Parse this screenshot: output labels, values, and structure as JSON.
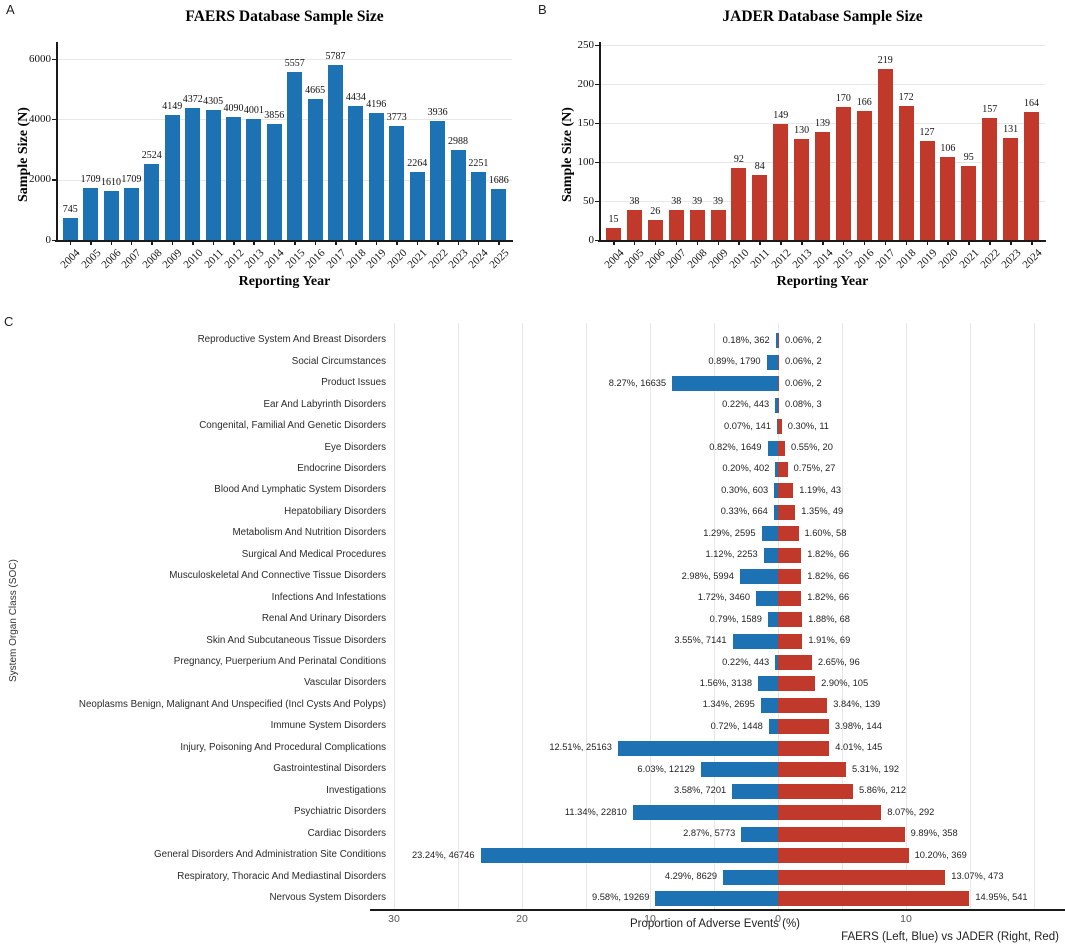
{
  "letters": {
    "a": "A",
    "b": "B",
    "c": "C"
  },
  "colors": {
    "faers_blue": "#1d72b4",
    "jader_red": "#c0392b",
    "grid": "#e7e7e7",
    "axis": "#1a1a1a"
  },
  "chart_data": [
    {
      "id": "faers-sample-size",
      "type": "bar",
      "title": "FAERS Database Sample Size",
      "xlabel": "Reporting Year",
      "ylabel": "Sample Size (N)",
      "categories": [
        2004,
        2005,
        2006,
        2007,
        2008,
        2009,
        2010,
        2011,
        2012,
        2013,
        2014,
        2015,
        2016,
        2017,
        2018,
        2019,
        2020,
        2021,
        2022,
        2023,
        2024,
        2025
      ],
      "values": [
        745,
        1709,
        1610,
        1709,
        2524,
        4149,
        4372,
        4305,
        4090,
        4001,
        3856,
        5557,
        4665,
        5787,
        4434,
        4196,
        3773,
        2264,
        3936,
        2988,
        2251,
        1686
      ],
      "ylim": [
        0,
        6450
      ],
      "yticks": [
        0,
        2000,
        4000,
        6000
      ],
      "bar_color": "#1d72b4",
      "grid": "horizontal"
    },
    {
      "id": "jader-sample-size",
      "type": "bar",
      "title": "JADER Database Sample Size",
      "xlabel": "Reporting Year",
      "ylabel": "Sample Size (N)",
      "categories": [
        2004,
        2005,
        2006,
        2007,
        2008,
        2009,
        2010,
        2011,
        2012,
        2013,
        2014,
        2015,
        2016,
        2017,
        2018,
        2019,
        2020,
        2021,
        2022,
        2023,
        2024
      ],
      "values": [
        15,
        38,
        26,
        38,
        39,
        39,
        92,
        84,
        149,
        130,
        139,
        170,
        166,
        219,
        172,
        127,
        106,
        95,
        157,
        131,
        164
      ],
      "ylim": [
        0,
        250
      ],
      "yticks": [
        0,
        50,
        100,
        150,
        200,
        250
      ],
      "bar_color": "#c0392b",
      "grid": "horizontal"
    },
    {
      "id": "soc-proportion-comparison",
      "type": "bar-diverging",
      "xlabel": "Proportion of Adverse Events (%)",
      "ylabel": "System Organ Class (SOC)",
      "caption": "FAERS (Left, Blue) vs JADER (Right, Red)",
      "xticks": [
        -30,
        -20,
        -10,
        0,
        10
      ],
      "xtick_labels": [
        "30",
        "20",
        "10",
        "0",
        "10"
      ],
      "xlim": [
        -30,
        22
      ],
      "grid": "vertical",
      "series": [
        {
          "name": "FAERS",
          "side": "left",
          "color": "#1d72b4"
        },
        {
          "name": "JADER",
          "side": "right",
          "color": "#c0392b"
        }
      ],
      "rows": [
        {
          "label": "Reproductive System And Breast Disorders",
          "faers_pct": 0.18,
          "faers_n": 362,
          "jader_pct": 0.06,
          "jader_n": 2
        },
        {
          "label": "Social Circumstances",
          "faers_pct": 0.89,
          "faers_n": 1790,
          "jader_pct": 0.06,
          "jader_n": 2
        },
        {
          "label": "Product Issues",
          "faers_pct": 8.27,
          "faers_n": 16635,
          "jader_pct": 0.06,
          "jader_n": 2
        },
        {
          "label": "Ear And Labyrinth Disorders",
          "faers_pct": 0.22,
          "faers_n": 443,
          "jader_pct": 0.08,
          "jader_n": 3
        },
        {
          "label": "Congenital, Familial And Genetic Disorders",
          "faers_pct": 0.07,
          "faers_n": 141,
          "jader_pct": 0.3,
          "jader_n": 11
        },
        {
          "label": "Eye Disorders",
          "faers_pct": 0.82,
          "faers_n": 1649,
          "jader_pct": 0.55,
          "jader_n": 20
        },
        {
          "label": "Endocrine Disorders",
          "faers_pct": 0.2,
          "faers_n": 402,
          "jader_pct": 0.75,
          "jader_n": 27
        },
        {
          "label": "Blood And Lymphatic System Disorders",
          "faers_pct": 0.3,
          "faers_n": 603,
          "jader_pct": 1.19,
          "jader_n": 43
        },
        {
          "label": "Hepatobiliary Disorders",
          "faers_pct": 0.33,
          "faers_n": 664,
          "jader_pct": 1.35,
          "jader_n": 49
        },
        {
          "label": "Metabolism And Nutrition Disorders",
          "faers_pct": 1.29,
          "faers_n": 2595,
          "jader_pct": 1.6,
          "jader_n": 58
        },
        {
          "label": "Surgical And Medical Procedures",
          "faers_pct": 1.12,
          "faers_n": 2253,
          "jader_pct": 1.82,
          "jader_n": 66
        },
        {
          "label": "Musculoskeletal And Connective Tissue Disorders",
          "faers_pct": 2.98,
          "faers_n": 5994,
          "jader_pct": 1.82,
          "jader_n": 66
        },
        {
          "label": "Infections And Infestations",
          "faers_pct": 1.72,
          "faers_n": 3460,
          "jader_pct": 1.82,
          "jader_n": 66
        },
        {
          "label": "Renal And Urinary Disorders",
          "faers_pct": 0.79,
          "faers_n": 1589,
          "jader_pct": 1.88,
          "jader_n": 68
        },
        {
          "label": "Skin And Subcutaneous Tissue Disorders",
          "faers_pct": 3.55,
          "faers_n": 7141,
          "jader_pct": 1.91,
          "jader_n": 69
        },
        {
          "label": "Pregnancy, Puerperium And Perinatal Conditions",
          "faers_pct": 0.22,
          "faers_n": 443,
          "jader_pct": 2.65,
          "jader_n": 96
        },
        {
          "label": "Vascular Disorders",
          "faers_pct": 1.56,
          "faers_n": 3138,
          "jader_pct": 2.9,
          "jader_n": 105
        },
        {
          "label": "Neoplasms Benign, Malignant And Unspecified (Incl Cysts And Polyps)",
          "faers_pct": 1.34,
          "faers_n": 2695,
          "jader_pct": 3.84,
          "jader_n": 139
        },
        {
          "label": "Immune System Disorders",
          "faers_pct": 0.72,
          "faers_n": 1448,
          "jader_pct": 3.98,
          "jader_n": 144
        },
        {
          "label": "Injury, Poisoning And Procedural Complications",
          "faers_pct": 12.51,
          "faers_n": 25163,
          "jader_pct": 4.01,
          "jader_n": 145
        },
        {
          "label": "Gastrointestinal Disorders",
          "faers_pct": 6.03,
          "faers_n": 12129,
          "jader_pct": 5.31,
          "jader_n": 192
        },
        {
          "label": "Investigations",
          "faers_pct": 3.58,
          "faers_n": 7201,
          "jader_pct": 5.86,
          "jader_n": 212
        },
        {
          "label": "Psychiatric Disorders",
          "faers_pct": 11.34,
          "faers_n": 22810,
          "jader_pct": 8.07,
          "jader_n": 292
        },
        {
          "label": "Cardiac Disorders",
          "faers_pct": 2.87,
          "faers_n": 5773,
          "jader_pct": 9.89,
          "jader_n": 358
        },
        {
          "label": "General Disorders And Administration Site Conditions",
          "faers_pct": 23.24,
          "faers_n": 46746,
          "jader_pct": 10.2,
          "jader_n": 369
        },
        {
          "label": "Respiratory, Thoracic And Mediastinal Disorders",
          "faers_pct": 4.29,
          "faers_n": 8629,
          "jader_pct": 13.07,
          "jader_n": 473
        },
        {
          "label": "Nervous System Disorders",
          "faers_pct": 9.58,
          "faers_n": 19269,
          "jader_pct": 14.95,
          "jader_n": 541
        }
      ]
    }
  ]
}
